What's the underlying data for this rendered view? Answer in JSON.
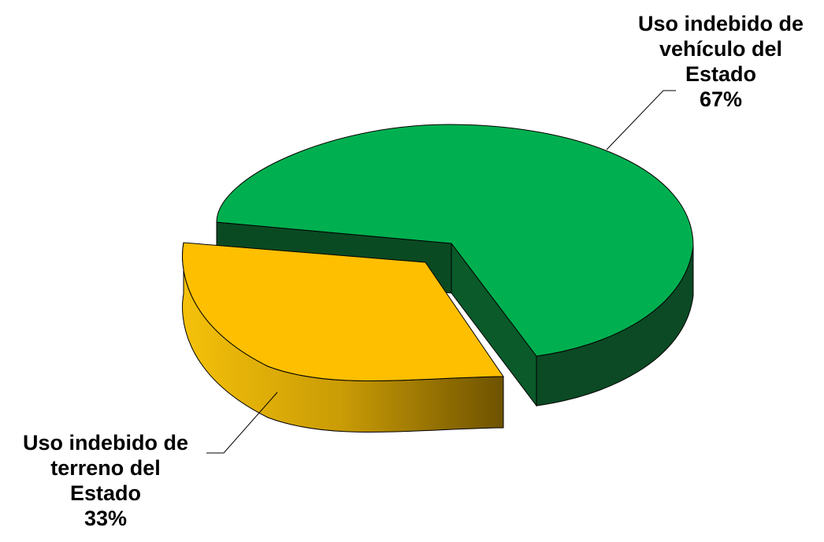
{
  "chart_data": {
    "type": "pie",
    "three_d": true,
    "exploded": true,
    "title": "",
    "slices": [
      {
        "label_lines": [
          "Uso indebido de",
          "vehículo del",
          "Estado"
        ],
        "value": 67,
        "value_label": "67%",
        "color": "#00b050",
        "side_color": "#0b4a24"
      },
      {
        "label_lines": [
          "Uso indebido de",
          "terreno del",
          "Estado"
        ],
        "value": 33,
        "value_label": "33%",
        "color": "#fdbf00",
        "side_color": "#c99400"
      }
    ]
  }
}
